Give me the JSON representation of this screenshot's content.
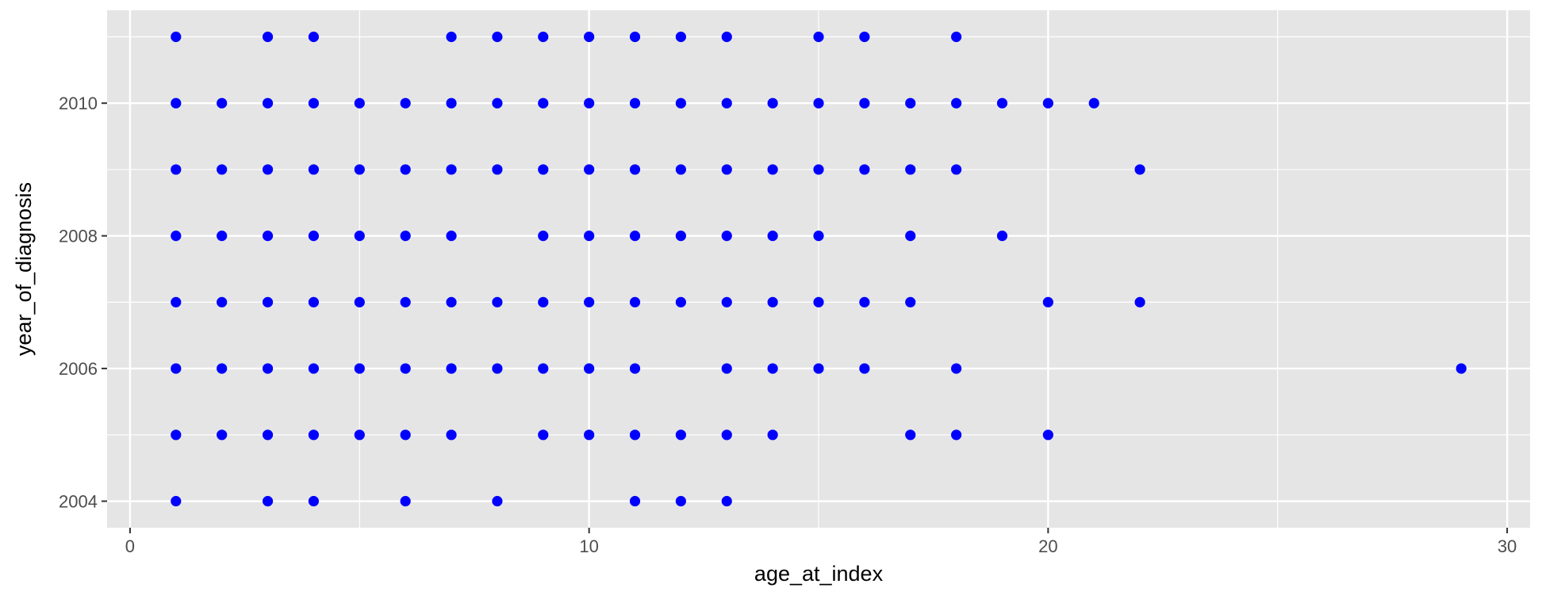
{
  "chart_data": {
    "type": "scatter",
    "xlabel": "age_at_index",
    "ylabel": "year_of_diagnosis",
    "xlim": [
      -0.5,
      30.5
    ],
    "ylim": [
      2003.6,
      2011.4
    ],
    "x_ticks": [
      0,
      10,
      20,
      30
    ],
    "x_minor_ticks": [
      5,
      15,
      25
    ],
    "y_ticks": [
      2004,
      2006,
      2008,
      2010
    ],
    "y_minor_ticks": [
      2005,
      2007,
      2009,
      2011
    ],
    "x_tick_labels": [
      "0",
      "10",
      "20",
      "30"
    ],
    "y_tick_labels": [
      "2004",
      "2006",
      "2008",
      "2010"
    ],
    "grid": true,
    "legend": "none",
    "colors": {
      "points": "#0000ff",
      "panel": "#e5e5e5",
      "grid": "#ffffff"
    },
    "series": [
      {
        "points": [
          [
            1,
            2011
          ],
          [
            3,
            2011
          ],
          [
            4,
            2011
          ],
          [
            7,
            2011
          ],
          [
            8,
            2011
          ],
          [
            9,
            2011
          ],
          [
            10,
            2011
          ],
          [
            11,
            2011
          ],
          [
            12,
            2011
          ],
          [
            13,
            2011
          ],
          [
            15,
            2011
          ],
          [
            16,
            2011
          ],
          [
            18,
            2011
          ],
          [
            1,
            2010
          ],
          [
            2,
            2010
          ],
          [
            3,
            2010
          ],
          [
            4,
            2010
          ],
          [
            5,
            2010
          ],
          [
            6,
            2010
          ],
          [
            7,
            2010
          ],
          [
            8,
            2010
          ],
          [
            9,
            2010
          ],
          [
            10,
            2010
          ],
          [
            11,
            2010
          ],
          [
            12,
            2010
          ],
          [
            13,
            2010
          ],
          [
            14,
            2010
          ],
          [
            15,
            2010
          ],
          [
            16,
            2010
          ],
          [
            17,
            2010
          ],
          [
            18,
            2010
          ],
          [
            19,
            2010
          ],
          [
            20,
            2010
          ],
          [
            21,
            2010
          ],
          [
            1,
            2009
          ],
          [
            2,
            2009
          ],
          [
            3,
            2009
          ],
          [
            4,
            2009
          ],
          [
            5,
            2009
          ],
          [
            6,
            2009
          ],
          [
            7,
            2009
          ],
          [
            8,
            2009
          ],
          [
            9,
            2009
          ],
          [
            10,
            2009
          ],
          [
            11,
            2009
          ],
          [
            12,
            2009
          ],
          [
            13,
            2009
          ],
          [
            14,
            2009
          ],
          [
            15,
            2009
          ],
          [
            16,
            2009
          ],
          [
            17,
            2009
          ],
          [
            18,
            2009
          ],
          [
            22,
            2009
          ],
          [
            1,
            2008
          ],
          [
            2,
            2008
          ],
          [
            3,
            2008
          ],
          [
            4,
            2008
          ],
          [
            5,
            2008
          ],
          [
            6,
            2008
          ],
          [
            7,
            2008
          ],
          [
            9,
            2008
          ],
          [
            10,
            2008
          ],
          [
            11,
            2008
          ],
          [
            12,
            2008
          ],
          [
            13,
            2008
          ],
          [
            14,
            2008
          ],
          [
            15,
            2008
          ],
          [
            17,
            2008
          ],
          [
            19,
            2008
          ],
          [
            1,
            2007
          ],
          [
            2,
            2007
          ],
          [
            3,
            2007
          ],
          [
            4,
            2007
          ],
          [
            5,
            2007
          ],
          [
            6,
            2007
          ],
          [
            7,
            2007
          ],
          [
            8,
            2007
          ],
          [
            9,
            2007
          ],
          [
            10,
            2007
          ],
          [
            11,
            2007
          ],
          [
            12,
            2007
          ],
          [
            13,
            2007
          ],
          [
            14,
            2007
          ],
          [
            15,
            2007
          ],
          [
            16,
            2007
          ],
          [
            17,
            2007
          ],
          [
            20,
            2007
          ],
          [
            22,
            2007
          ],
          [
            1,
            2006
          ],
          [
            2,
            2006
          ],
          [
            3,
            2006
          ],
          [
            4,
            2006
          ],
          [
            5,
            2006
          ],
          [
            6,
            2006
          ],
          [
            7,
            2006
          ],
          [
            8,
            2006
          ],
          [
            9,
            2006
          ],
          [
            10,
            2006
          ],
          [
            11,
            2006
          ],
          [
            13,
            2006
          ],
          [
            14,
            2006
          ],
          [
            15,
            2006
          ],
          [
            16,
            2006
          ],
          [
            18,
            2006
          ],
          [
            29,
            2006
          ],
          [
            1,
            2005
          ],
          [
            2,
            2005
          ],
          [
            3,
            2005
          ],
          [
            4,
            2005
          ],
          [
            5,
            2005
          ],
          [
            6,
            2005
          ],
          [
            7,
            2005
          ],
          [
            9,
            2005
          ],
          [
            10,
            2005
          ],
          [
            11,
            2005
          ],
          [
            12,
            2005
          ],
          [
            13,
            2005
          ],
          [
            14,
            2005
          ],
          [
            17,
            2005
          ],
          [
            18,
            2005
          ],
          [
            20,
            2005
          ],
          [
            1,
            2004
          ],
          [
            3,
            2004
          ],
          [
            4,
            2004
          ],
          [
            6,
            2004
          ],
          [
            8,
            2004
          ],
          [
            11,
            2004
          ],
          [
            12,
            2004
          ],
          [
            13,
            2004
          ]
        ]
      }
    ]
  }
}
